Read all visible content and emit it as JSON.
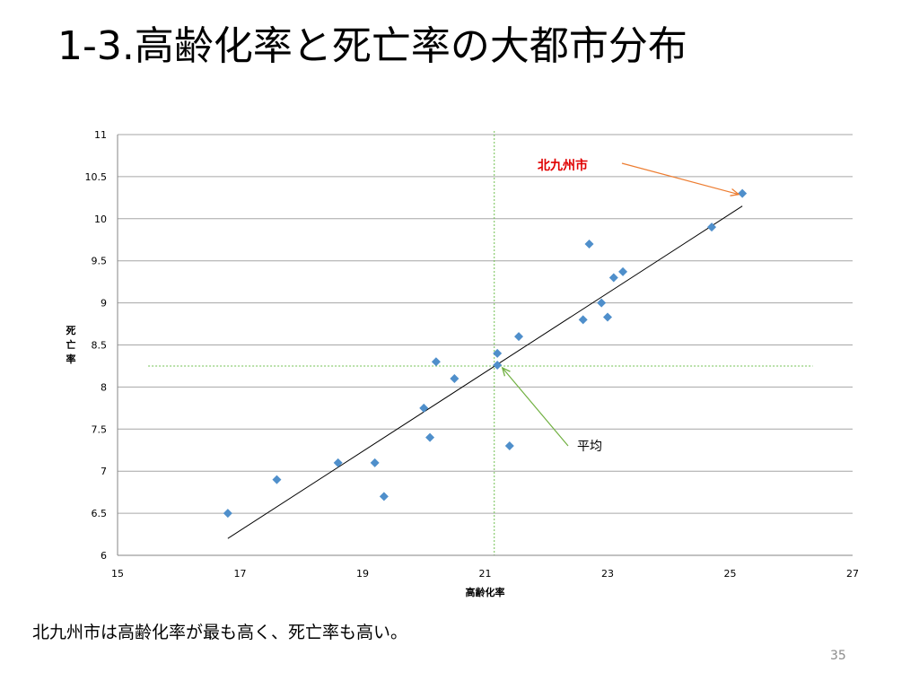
{
  "slide": {
    "title": "1-3.高齢化率と死亡率の大都市分布",
    "caption": "北九州市は高齢化率が最も高く、死亡率も高い。",
    "page_number": "35"
  },
  "chart_data": {
    "type": "scatter",
    "title": "",
    "xlabel": "高齢化率",
    "ylabel": "死亡率",
    "xlim": [
      15,
      27
    ],
    "ylim": [
      6,
      11
    ],
    "x_ticks": [
      15,
      17,
      19,
      21,
      23,
      25,
      27
    ],
    "y_ticks": [
      6,
      6.5,
      7,
      7.5,
      8,
      8.5,
      9,
      9.5,
      10,
      10.5,
      11
    ],
    "grid": "horizontal",
    "points": [
      {
        "x": 16.8,
        "y": 6.5
      },
      {
        "x": 17.6,
        "y": 6.9
      },
      {
        "x": 18.6,
        "y": 7.1
      },
      {
        "x": 19.2,
        "y": 7.1
      },
      {
        "x": 19.35,
        "y": 6.7
      },
      {
        "x": 20.0,
        "y": 7.75
      },
      {
        "x": 20.1,
        "y": 7.4
      },
      {
        "x": 20.2,
        "y": 8.3
      },
      {
        "x": 20.5,
        "y": 8.1
      },
      {
        "x": 21.2,
        "y": 8.4
      },
      {
        "x": 21.2,
        "y": 8.26
      },
      {
        "x": 21.4,
        "y": 7.3
      },
      {
        "x": 21.55,
        "y": 8.6
      },
      {
        "x": 22.6,
        "y": 8.8
      },
      {
        "x": 22.7,
        "y": 9.7
      },
      {
        "x": 22.9,
        "y": 9.0
      },
      {
        "x": 23.0,
        "y": 8.83
      },
      {
        "x": 23.1,
        "y": 9.3
      },
      {
        "x": 23.25,
        "y": 9.37
      },
      {
        "x": 24.7,
        "y": 9.9
      },
      {
        "x": 25.2,
        "y": 10.3
      }
    ],
    "trendline": {
      "x1": 16.8,
      "y1": 6.2,
      "x2": 25.2,
      "y2": 10.15
    },
    "average": {
      "x": 21.15,
      "y": 8.25
    },
    "annotations": [
      {
        "text": "北九州市",
        "target": {
          "x": 25.2,
          "y": 10.3
        }
      },
      {
        "text": "平均",
        "target": {
          "x": 21.15,
          "y": 8.25
        }
      }
    ],
    "colors": {
      "marker": "#4f8fcb",
      "gridline": "#a6a6a6",
      "trendline": "#000000",
      "average_line": "#70c050",
      "city_label": "#e00000",
      "city_arrow": "#ed7d31",
      "avg_arrow": "#70b040"
    }
  }
}
